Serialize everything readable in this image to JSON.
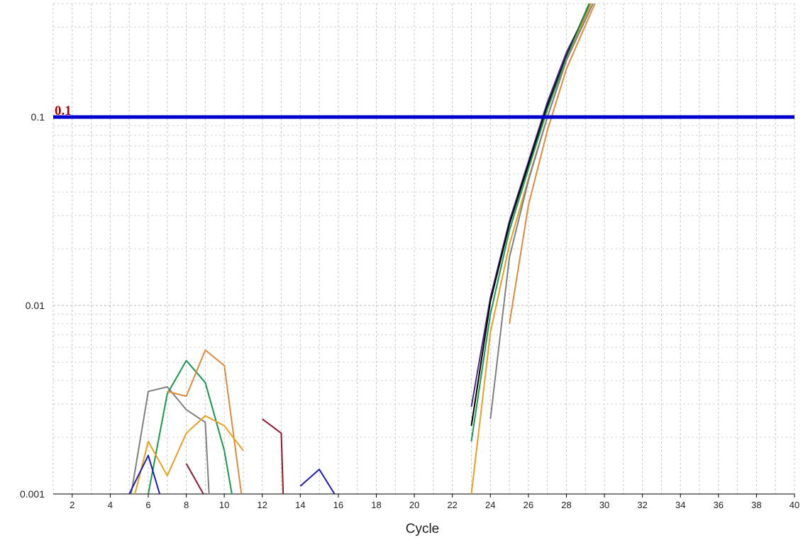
{
  "chart_data": {
    "type": "line",
    "xlabel": "Cycle",
    "ylabel": "",
    "xscale": "linear",
    "yscale": "log",
    "xlim": [
      1,
      40
    ],
    "ylim": [
      0.001,
      0.4
    ],
    "xticks": [
      2,
      4,
      6,
      8,
      10,
      12,
      14,
      16,
      18,
      20,
      22,
      24,
      26,
      28,
      30,
      32,
      34,
      36,
      38,
      40
    ],
    "xtick_labels": [
      "2",
      "4",
      "6",
      "8",
      "10",
      "12",
      "14",
      "16",
      "18",
      "20",
      "22",
      "24",
      "26",
      "28",
      "30",
      "32",
      "34",
      "36",
      "38",
      "40"
    ],
    "yticks": [
      0.001,
      0.01,
      0.1
    ],
    "ytick_labels": [
      "0.001",
      "0.01",
      "0.1"
    ],
    "grid": true,
    "threshold": {
      "value": 0.1,
      "label": "0.1",
      "color": "#0000cc",
      "label_color": "#b00000"
    },
    "series": [
      {
        "color": "#808080",
        "x": [
          5.1,
          6,
          7,
          8,
          9,
          9.2
        ],
        "y": [
          0.001,
          0.0035,
          0.0037,
          0.0028,
          0.0024,
          0.001
        ]
      },
      {
        "color": "#1a9850",
        "x": [
          6,
          7,
          8,
          9,
          10,
          10.4
        ],
        "y": [
          0.001,
          0.0034,
          0.0051,
          0.0039,
          0.0017,
          0.001
        ]
      },
      {
        "color": "#e08a3c",
        "x": [
          7,
          8,
          9,
          10,
          10.9
        ],
        "y": [
          0.0035,
          0.0033,
          0.0058,
          0.0048,
          0.001
        ]
      },
      {
        "color": "#e8a020",
        "x": [
          5.3,
          6,
          7,
          8,
          9,
          10,
          11
        ],
        "y": [
          0.001,
          0.0019,
          0.00125,
          0.0021,
          0.0026,
          0.0023,
          0.0017
        ]
      },
      {
        "color": "#2020b0",
        "x": [
          5,
          6,
          6.6
        ],
        "y": [
          0.001,
          0.0016,
          0.001
        ]
      },
      {
        "color": "#2020b0",
        "x": [
          14,
          15,
          15.8
        ],
        "y": [
          0.0011,
          0.00135,
          0.001
        ]
      },
      {
        "color": "#8b1a2b",
        "x": [
          8,
          8.9
        ],
        "y": [
          0.00145,
          0.001
        ]
      },
      {
        "color": "#8b1a2b",
        "x": [
          12,
          13,
          13.1
        ],
        "y": [
          0.0025,
          0.0021,
          0.001
        ]
      },
      {
        "color": "#4b2a8a",
        "x": [
          23,
          24,
          25,
          26,
          27,
          28,
          29.3
        ],
        "y": [
          0.0029,
          0.011,
          0.028,
          0.058,
          0.12,
          0.22,
          0.4
        ]
      },
      {
        "color": "#000000",
        "x": [
          23,
          24,
          25,
          26,
          27,
          28,
          29.2
        ],
        "y": [
          0.0023,
          0.0105,
          0.027,
          0.056,
          0.115,
          0.21,
          0.4
        ]
      },
      {
        "color": "#1a9850",
        "x": [
          23,
          24,
          25,
          26,
          27,
          28,
          29.2
        ],
        "y": [
          0.0019,
          0.009,
          0.025,
          0.053,
          0.11,
          0.205,
          0.4
        ]
      },
      {
        "color": "#e8a020",
        "x": [
          23,
          24,
          25,
          26,
          27,
          28,
          29.3
        ],
        "y": [
          0.001,
          0.0072,
          0.021,
          0.047,
          0.1,
          0.2,
          0.4
        ]
      },
      {
        "color": "#808080",
        "x": [
          24,
          25,
          26,
          27,
          28,
          29.4
        ],
        "y": [
          0.0025,
          0.018,
          0.046,
          0.1,
          0.2,
          0.4
        ]
      },
      {
        "color": "#e08a3c",
        "x": [
          25,
          26,
          27,
          28,
          29.5
        ],
        "y": [
          0.008,
          0.034,
          0.085,
          0.18,
          0.4
        ]
      }
    ]
  }
}
